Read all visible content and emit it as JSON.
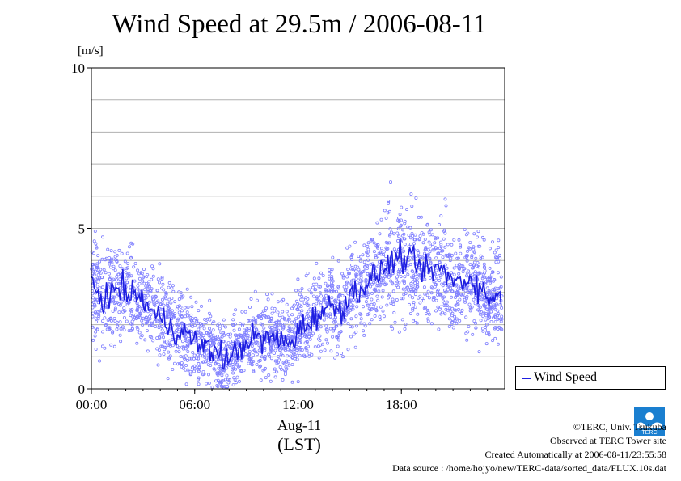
{
  "page": {
    "title": "Wind Speed at 29.5m / 2006-08-11",
    "credits": [
      "©TERC, Univ. Tsukuba",
      "Observed at TERC Tower site",
      "Created Automatically at 2006-08-11/23:55:58",
      "Data source : /home/hojyo/new/TERC-data/sorted_data/FLUX.10s.dat"
    ],
    "logo_text": "TERC"
  },
  "chart_data": {
    "type": "line",
    "title": "Wind Speed at 29.5m / 2006-08-11",
    "ylabel": "[m/s]",
    "xlabel_category": "Aug-11",
    "xlabel_zone": "(LST)",
    "ylim": [
      0,
      10
    ],
    "xlim": [
      0,
      24
    ],
    "y_ticks": [
      {
        "value": 0,
        "label": "0"
      },
      {
        "value": 5,
        "label": "5"
      },
      {
        "value": 10,
        "label": "10"
      }
    ],
    "y_grid_step": 1,
    "x_ticks": [
      {
        "value": 0,
        "label": "00:00"
      },
      {
        "value": 6,
        "label": "06:00"
      },
      {
        "value": 12,
        "label": "12:00"
      },
      {
        "value": 18,
        "label": "18:00"
      }
    ],
    "grid": true,
    "legend_position": "right-bottom",
    "series": [
      {
        "name": "Wind Speed",
        "color": "#1f1fe0",
        "scatter_color": "#8080ff",
        "x_hours": [
          0,
          0.5,
          1,
          1.5,
          2,
          2.5,
          3,
          3.5,
          4,
          4.5,
          5,
          5.5,
          6,
          6.5,
          7,
          7.5,
          8,
          8.5,
          9,
          9.5,
          10,
          10.5,
          11,
          11.5,
          12,
          12.5,
          13,
          13.5,
          14,
          14.5,
          15,
          15.5,
          16,
          16.5,
          17,
          17.5,
          18,
          18.5,
          19,
          19.5,
          20,
          20.5,
          21,
          21.5,
          22,
          22.5,
          23,
          23.5
        ],
        "values": [
          3.3,
          2.9,
          2.8,
          3.2,
          3.0,
          2.9,
          2.8,
          2.4,
          2.2,
          2.0,
          1.8,
          1.7,
          1.5,
          1.3,
          1.2,
          1.1,
          0.9,
          1.2,
          1.5,
          1.6,
          1.5,
          1.6,
          1.5,
          1.4,
          1.8,
          2.0,
          2.3,
          2.4,
          2.6,
          2.5,
          2.9,
          3.1,
          3.3,
          3.5,
          3.8,
          4.0,
          4.1,
          4.0,
          3.8,
          3.6,
          3.8,
          3.6,
          3.4,
          3.3,
          3.5,
          3.2,
          2.8,
          2.9
        ]
      }
    ]
  }
}
